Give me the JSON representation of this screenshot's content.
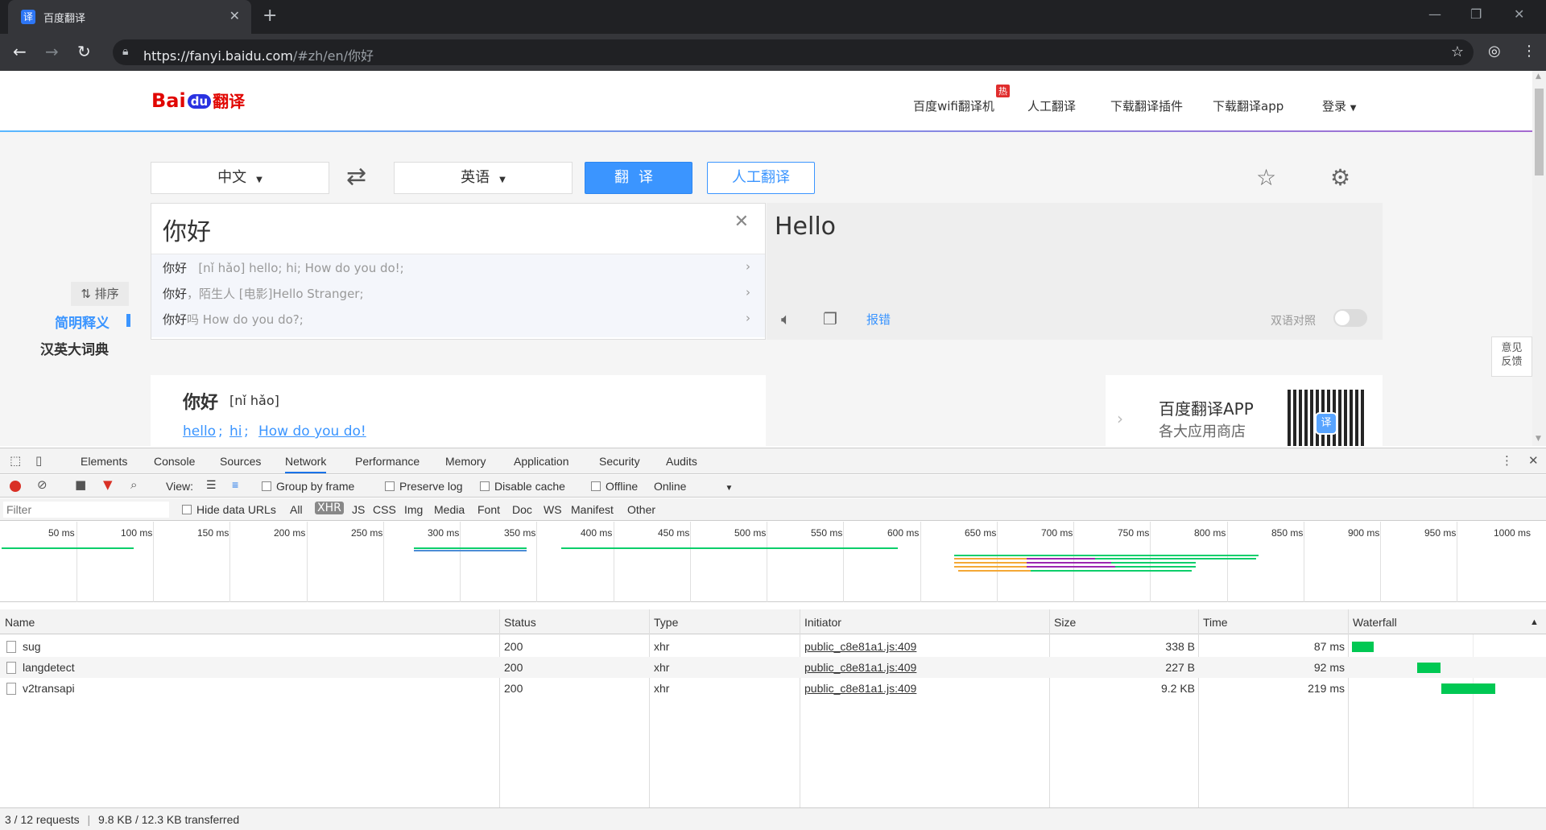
{
  "browser": {
    "tab_title": "百度翻译",
    "tab_favicon_glyph": "译",
    "url_host": "https://fanyi.baidu.com",
    "url_rest": "/#zh/en/你好"
  },
  "header": {
    "logo_bai": "Bai",
    "logo_du": "du",
    "logo_fy": "翻译",
    "hot_badge": "热",
    "nav": [
      "百度wifi翻译机",
      "人工翻译",
      "下载翻译插件",
      "下载翻译app",
      "登录"
    ]
  },
  "translator": {
    "source_lang": "中文",
    "target_lang": "英语",
    "translate_btn": "翻译",
    "human_btn": "人工翻译",
    "input_text": "你好",
    "suggestions": [
      {
        "key": "你好",
        "desc": "[nǐ hǎo] hello; hi; How do you do!;"
      },
      {
        "key": "你好",
        "desc": "，陌生人    [电影]Hello Stranger;"
      },
      {
        "key": "你好",
        "desc": "吗    How do you do?;"
      }
    ],
    "output_text": "Hello",
    "report": "报错",
    "bilingual": "双语对照"
  },
  "sidebar": {
    "sort": "⇅ 排序",
    "brief": "简明释义",
    "dict": "汉英大词典"
  },
  "dict": {
    "word": "你好",
    "pinyin": "[nǐ hǎo]",
    "meanings": [
      "hello",
      "hi",
      "How do you do!"
    ]
  },
  "feedback": "意见\n反馈",
  "app_promo": {
    "title": "百度翻译APP",
    "subtitle": "各大应用商店"
  },
  "devtools": {
    "tabs": [
      "Elements",
      "Console",
      "Sources",
      "Network",
      "Performance",
      "Memory",
      "Application",
      "Security",
      "Audits"
    ],
    "view_label": "View:",
    "group_by_frame": "Group by frame",
    "preserve_log": "Preserve log",
    "disable_cache": "Disable cache",
    "offline": "Offline",
    "throttle": "Online",
    "filter_placeholder": "Filter",
    "hide_data_urls": "Hide data URLs",
    "types": [
      "All",
      "XHR",
      "JS",
      "CSS",
      "Img",
      "Media",
      "Font",
      "Doc",
      "WS",
      "Manifest",
      "Other"
    ],
    "timeline_labels": [
      "50 ms",
      "100 ms",
      "150 ms",
      "200 ms",
      "250 ms",
      "300 ms",
      "350 ms",
      "400 ms",
      "450 ms",
      "500 ms",
      "550 ms",
      "600 ms",
      "650 ms",
      "700 ms",
      "750 ms",
      "800 ms",
      "850 ms",
      "900 ms",
      "950 ms",
      "1000 ms"
    ],
    "columns": [
      "Name",
      "Status",
      "Type",
      "Initiator",
      "Size",
      "Time",
      "Waterfall"
    ],
    "requests": [
      {
        "name": "sug",
        "status": "200",
        "type": "xhr",
        "initiator": "public_c8e81a1.js:409",
        "size": "338 B",
        "time": "87 ms"
      },
      {
        "name": "langdetect",
        "status": "200",
        "type": "xhr",
        "initiator": "public_c8e81a1.js:409",
        "size": "227 B",
        "time": "92 ms"
      },
      {
        "name": "v2transapi",
        "status": "200",
        "type": "xhr",
        "initiator": "public_c8e81a1.js:409",
        "size": "9.2 KB",
        "time": "219 ms"
      }
    ],
    "status_requests": "3 / 12 requests",
    "status_transfer": "9.8 KB / 12.3 KB transferred"
  }
}
